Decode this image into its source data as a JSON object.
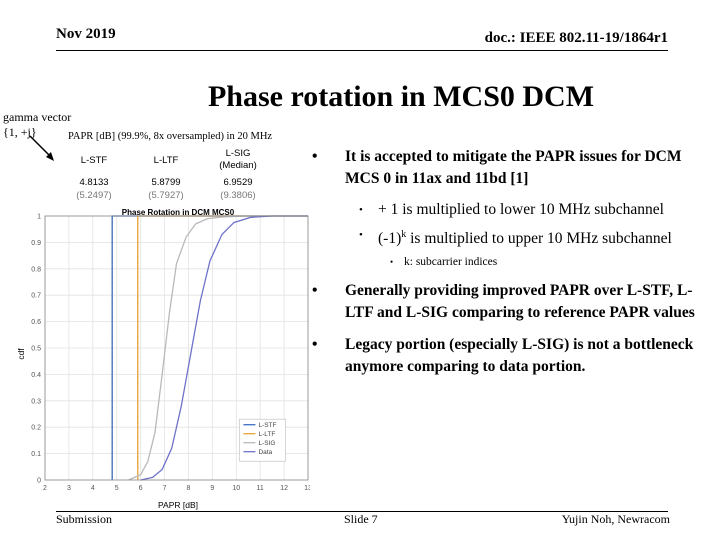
{
  "header": {
    "date": "Nov 2019",
    "doc": "doc.: IEEE 802.11-19/1864r1"
  },
  "title": "Phase rotation in MCS0 DCM",
  "gamma": {
    "line1": "gamma vector",
    "line2": "{1, +j}"
  },
  "table": {
    "caption": "PAPR [dB] (99.9%, 8x oversampled) in 20 MHz",
    "headers": [
      "L-STF",
      "L-LTF",
      "L-SIG\n(Median)"
    ],
    "values": [
      "4.8133",
      "5.8799",
      "6.9529"
    ],
    "refs": [
      "(5.2497)",
      "(5.7927)",
      "(9.3806)"
    ]
  },
  "chart_data": {
    "type": "line",
    "title": "Phase Rotation in DCM MCS0",
    "xlabel": "PAPR [dB]",
    "ylabel": "cdf",
    "xlim": [
      2,
      13
    ],
    "ylim": [
      0,
      1
    ],
    "xticks": [
      "2",
      "3",
      "4",
      "5",
      "6",
      "7",
      "8",
      "9",
      "10",
      "11",
      "12",
      "13"
    ],
    "yticks": [
      "0",
      "0.1",
      "0.2",
      "0.3",
      "0.4",
      "0.5",
      "0.6",
      "0.7",
      "0.8",
      "0.9",
      "1"
    ],
    "grid": true,
    "legend": "bottom-right",
    "vlines": [
      {
        "name": "L-STF",
        "x": 4.8133,
        "color": "#e8a33d"
      },
      {
        "name": "L-LTF",
        "x": 5.8799,
        "color": "#e8a33d"
      }
    ],
    "series": [
      {
        "name": "L-STF",
        "color": "#3b6fc2",
        "x": [
          4.81,
          4.81,
          13
        ],
        "y": [
          0,
          1,
          1
        ]
      },
      {
        "name": "L-LTF",
        "color": "#e8a33d",
        "x": [
          5.88,
          5.88,
          13
        ],
        "y": [
          0,
          1,
          1
        ]
      },
      {
        "name": "L-SIG",
        "color": "#b9b9b9",
        "x": [
          5.5,
          6,
          6.3,
          6.6,
          6.9,
          7.2,
          7.5,
          7.9,
          8.3,
          8.8,
          9.5,
          10.5,
          13
        ],
        "y": [
          0,
          0.02,
          0.07,
          0.18,
          0.4,
          0.63,
          0.82,
          0.92,
          0.97,
          0.99,
          0.997,
          1,
          1
        ]
      },
      {
        "name": "Data",
        "color": "#6f73c8",
        "x": [
          6,
          6.5,
          6.9,
          7.3,
          7.7,
          8.1,
          8.5,
          8.9,
          9.4,
          9.9,
          10.6,
          11.5,
          13
        ],
        "y": [
          0,
          0.01,
          0.04,
          0.12,
          0.28,
          0.48,
          0.68,
          0.83,
          0.93,
          0.975,
          0.995,
          1,
          1
        ]
      }
    ]
  },
  "bullets": {
    "b1": "It is accepted to mitigate the PAPR issues for DCM MCS 0 in 11ax and 11bd [1]",
    "b1_sub1": "+ 1 is multiplied to lower 10 MHz subchannel",
    "b1_sub2_pre": "(-1)",
    "b1_sub2_sup": "k",
    "b1_sub2_post": " is multiplied to upper 10 MHz subchannel",
    "b1_sub3": "k: subcarrier indices",
    "b2": "Generally providing improved PAPR over L-STF, L-LTF and L-SIG comparing to reference PAPR values",
    "b3": "Legacy portion (especially L-SIG) is not a bottleneck anymore comparing to data portion."
  },
  "footer": {
    "left": "Submission",
    "mid": "Slide 7",
    "right": "Yujin Noh, Newracom"
  }
}
